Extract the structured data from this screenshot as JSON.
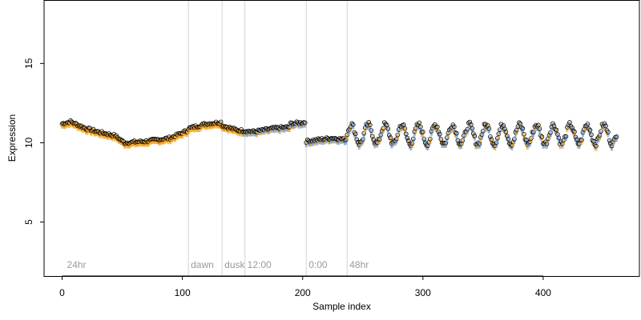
{
  "chart_data": {
    "type": "scatter",
    "title": "",
    "xlabel": "Sample index",
    "ylabel": "Expression",
    "xlim": [
      -15,
      480
    ],
    "ylim": [
      1.6,
      19.0
    ],
    "x_ticks": [
      0,
      100,
      200,
      300,
      400
    ],
    "y_ticks": [
      5,
      10,
      15
    ],
    "grid": false,
    "legend": "none",
    "n_points": 462,
    "colors": {
      "points_early": "#f5a623",
      "points_late": "#7fa3d1",
      "outline": "#000000",
      "vlines": "#d3d3d3",
      "annotation": "#9a9a9a"
    },
    "vlines": [
      {
        "x": 105,
        "label": "dawn"
      },
      {
        "x": 133,
        "label": "dusk"
      },
      {
        "x": 152,
        "label": "12:00"
      },
      {
        "x": 203,
        "label": "0:00"
      },
      {
        "x": 237,
        "label": "48hr"
      }
    ],
    "corner_annotation": {
      "x": 2,
      "label": "24hr"
    },
    "segments": [
      {
        "from": 0,
        "to": 8,
        "y": [
          11.2,
          11.35
        ]
      },
      {
        "from": 8,
        "to": 20,
        "y": [
          11.3,
          10.9
        ]
      },
      {
        "from": 20,
        "to": 32,
        "y": [
          10.9,
          10.65
        ]
      },
      {
        "from": 32,
        "to": 44,
        "y": [
          10.65,
          10.45
        ]
      },
      {
        "from": 44,
        "to": 52,
        "y": [
          10.45,
          10.0
        ]
      },
      {
        "from": 52,
        "to": 70,
        "y": [
          10.0,
          10.1
        ]
      },
      {
        "from": 70,
        "to": 90,
        "y": [
          10.1,
          10.3
        ]
      },
      {
        "from": 90,
        "to": 105,
        "y": [
          10.3,
          10.8
        ]
      },
      {
        "from": 105,
        "to": 120,
        "y": [
          10.9,
          11.2
        ]
      },
      {
        "from": 120,
        "to": 133,
        "y": [
          11.2,
          11.3
        ]
      },
      {
        "from": 133,
        "to": 145,
        "y": [
          11.1,
          10.8
        ]
      },
      {
        "from": 145,
        "to": 160,
        "y": [
          10.8,
          10.7
        ]
      },
      {
        "from": 160,
        "to": 175,
        "y": [
          10.7,
          10.9
        ]
      },
      {
        "from": 175,
        "to": 190,
        "y": [
          10.9,
          11.0
        ]
      },
      {
        "from": 190,
        "to": 203,
        "y": [
          11.2,
          11.3
        ]
      },
      {
        "from": 203,
        "to": 225,
        "y": [
          10.1,
          10.3
        ]
      },
      {
        "from": 225,
        "to": 237,
        "y": [
          10.3,
          10.2
        ]
      }
    ],
    "oscillation": {
      "from": 237,
      "to": 462,
      "center": 10.55,
      "amplitude": 0.6,
      "period": 14
    }
  }
}
